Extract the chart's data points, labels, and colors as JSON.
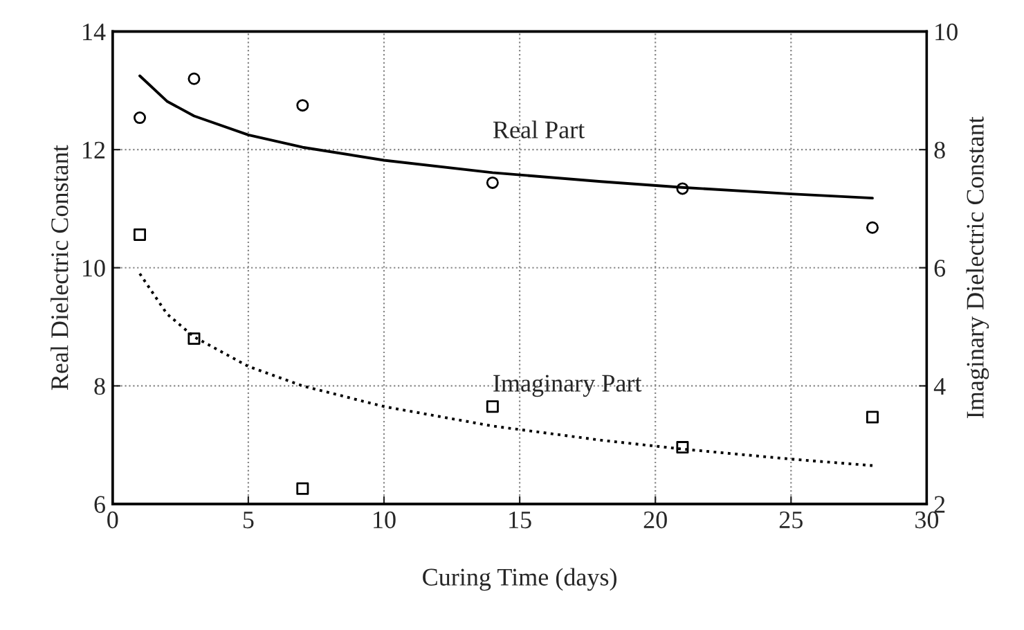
{
  "chart_data": {
    "type": "scatter",
    "xlabel": "Curing Time (days)",
    "ylabel": "Real Dielectric Constant",
    "y2label": "Imaginary Dielectric Constant",
    "xlim": [
      0,
      30
    ],
    "xticks": [
      0,
      5,
      10,
      15,
      20,
      25,
      30
    ],
    "ylim": [
      6,
      14
    ],
    "yticks": [
      6,
      8,
      10,
      12,
      14
    ],
    "y2lim": [
      2,
      10
    ],
    "y2ticks": [
      2,
      4,
      6,
      8,
      10
    ],
    "grid": true,
    "series": [
      {
        "marker": "circle",
        "color": "#000000",
        "x": [
          1,
          3,
          7,
          14,
          21,
          28
        ],
        "values": [
          12.54,
          13.2,
          12.75,
          11.44,
          11.34,
          10.68
        ]
      },
      {
        "marker": "square",
        "axis": "y2",
        "color": "#000000",
        "x": [
          1,
          3,
          7,
          14,
          21,
          28
        ],
        "values": [
          6.56,
          4.8,
          2.26,
          3.65,
          2.96,
          3.47
        ]
      },
      {
        "type": "line",
        "name": "Real Part",
        "line_style": "solid",
        "marker": "none",
        "color": "#000000",
        "x": [
          1,
          2,
          3,
          5,
          7,
          10,
          14,
          18,
          21,
          25,
          28
        ],
        "values": [
          13.25,
          12.82,
          12.57,
          12.25,
          12.04,
          11.82,
          11.61,
          11.46,
          11.36,
          11.25,
          11.18
        ]
      },
      {
        "type": "line",
        "name": "Imaginary Part",
        "line_style": "dotted",
        "marker": "none",
        "axis": "y2",
        "color": "#000000",
        "x": [
          1,
          2,
          3,
          5,
          7,
          10,
          14,
          18,
          21,
          25,
          28
        ],
        "values": [
          5.9,
          5.22,
          4.83,
          4.33,
          4.0,
          3.65,
          3.32,
          3.08,
          2.93,
          2.76,
          2.65
        ]
      }
    ]
  }
}
